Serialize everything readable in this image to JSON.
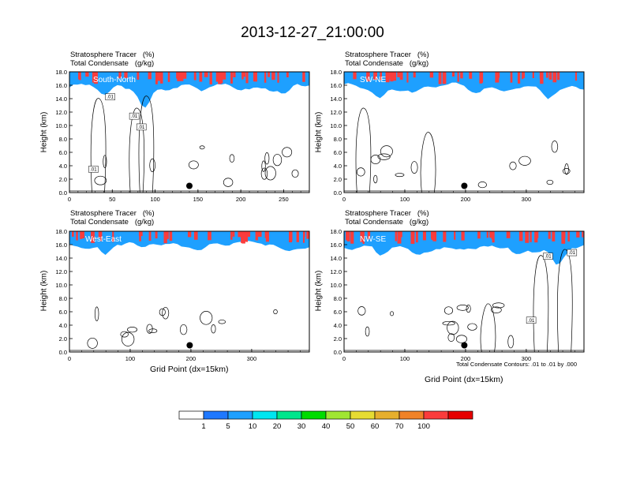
{
  "figure": {
    "title": "2013-12-27_21:00:00",
    "header_line1": "Stratosphere Tracer   (%)",
    "header_line2": "Total Condensate   (g/kg)",
    "ylabel": "Height (km)",
    "xlabel": "Grid Point (dx=15km)",
    "contour_note": "Total Condensate Contours: .01 to .01 by .000"
  },
  "colors": {
    "levels": [
      "#ffffff",
      "#1e78ff",
      "#1ea0ff",
      "#00e6f0",
      "#00e68c",
      "#00dc00",
      "#a0e632",
      "#e6dc32",
      "#e6af2d",
      "#f08228",
      "#fa3c3c",
      "#e60000"
    ],
    "contour": "#000000"
  },
  "colorbar": {
    "labels": [
      "1",
      "5",
      "10",
      "20",
      "30",
      "40",
      "50",
      "60",
      "70",
      "100"
    ],
    "colors": [
      "#ffffff",
      "#1e78ff",
      "#1ea0ff",
      "#00e6f0",
      "#00e68c",
      "#00dc00",
      "#a0e632",
      "#e6dc32",
      "#e6af2d",
      "#f08228",
      "#fa3c3c",
      "#e60000"
    ]
  },
  "chart_data": [
    {
      "type": "heatmap",
      "name": "South-North",
      "title": "South-North",
      "xlim": [
        0,
        280
      ],
      "xticks": [
        0,
        50,
        100,
        150,
        200,
        250
      ],
      "ylim": [
        0,
        18
      ],
      "yticks": [
        "0.0",
        "2.0",
        "4.0",
        "6.0",
        "8.0",
        "10.0",
        "12.0",
        "14.0",
        "16.0",
        "18.0"
      ],
      "tropopause_km": 15.5,
      "marker": {
        "x": 140,
        "y": 1.0
      },
      "contour_labels": [
        ".01",
        ".01",
        ".01",
        ".01"
      ]
    },
    {
      "type": "heatmap",
      "name": "SW-NE",
      "title": "SW-NE",
      "xlim": [
        0,
        395
      ],
      "xticks": [
        0,
        100,
        200,
        300
      ],
      "ylim": [
        0,
        18
      ],
      "yticks": [
        "0.0",
        "2.0",
        "4.0",
        "6.0",
        "8.0",
        "10.0",
        "12.0",
        "14.0",
        "16.0",
        "18.0"
      ],
      "tropopause_km": 15.5,
      "marker": {
        "x": 198,
        "y": 1.0
      },
      "contour_labels": []
    },
    {
      "type": "heatmap",
      "name": "West-East",
      "title": "West-East",
      "xlim": [
        0,
        395
      ],
      "xticks": [
        0,
        100,
        200,
        300
      ],
      "ylim": [
        0,
        18
      ],
      "yticks": [
        "0.0",
        "2.0",
        "4.0",
        "6.0",
        "8.0",
        "10.0",
        "12.0",
        "14.0",
        "16.0",
        "18.0"
      ],
      "tropopause_km": 15.8,
      "marker": {
        "x": 198,
        "y": 1.0
      },
      "contour_labels": []
    },
    {
      "type": "heatmap",
      "name": "NW-SE",
      "title": "NW-SE",
      "xlim": [
        0,
        395
      ],
      "xticks": [
        0,
        100,
        200,
        300
      ],
      "ylim": [
        0,
        18
      ],
      "yticks": [
        "0.0",
        "2.0",
        "4.0",
        "6.0",
        "8.0",
        "10.0",
        "12.0",
        "14.0",
        "16.0",
        "18.0"
      ],
      "tropopause_km": 15.3,
      "marker": {
        "x": 198,
        "y": 1.0
      },
      "contour_labels": [
        ".01",
        ".01",
        ".01"
      ]
    }
  ]
}
